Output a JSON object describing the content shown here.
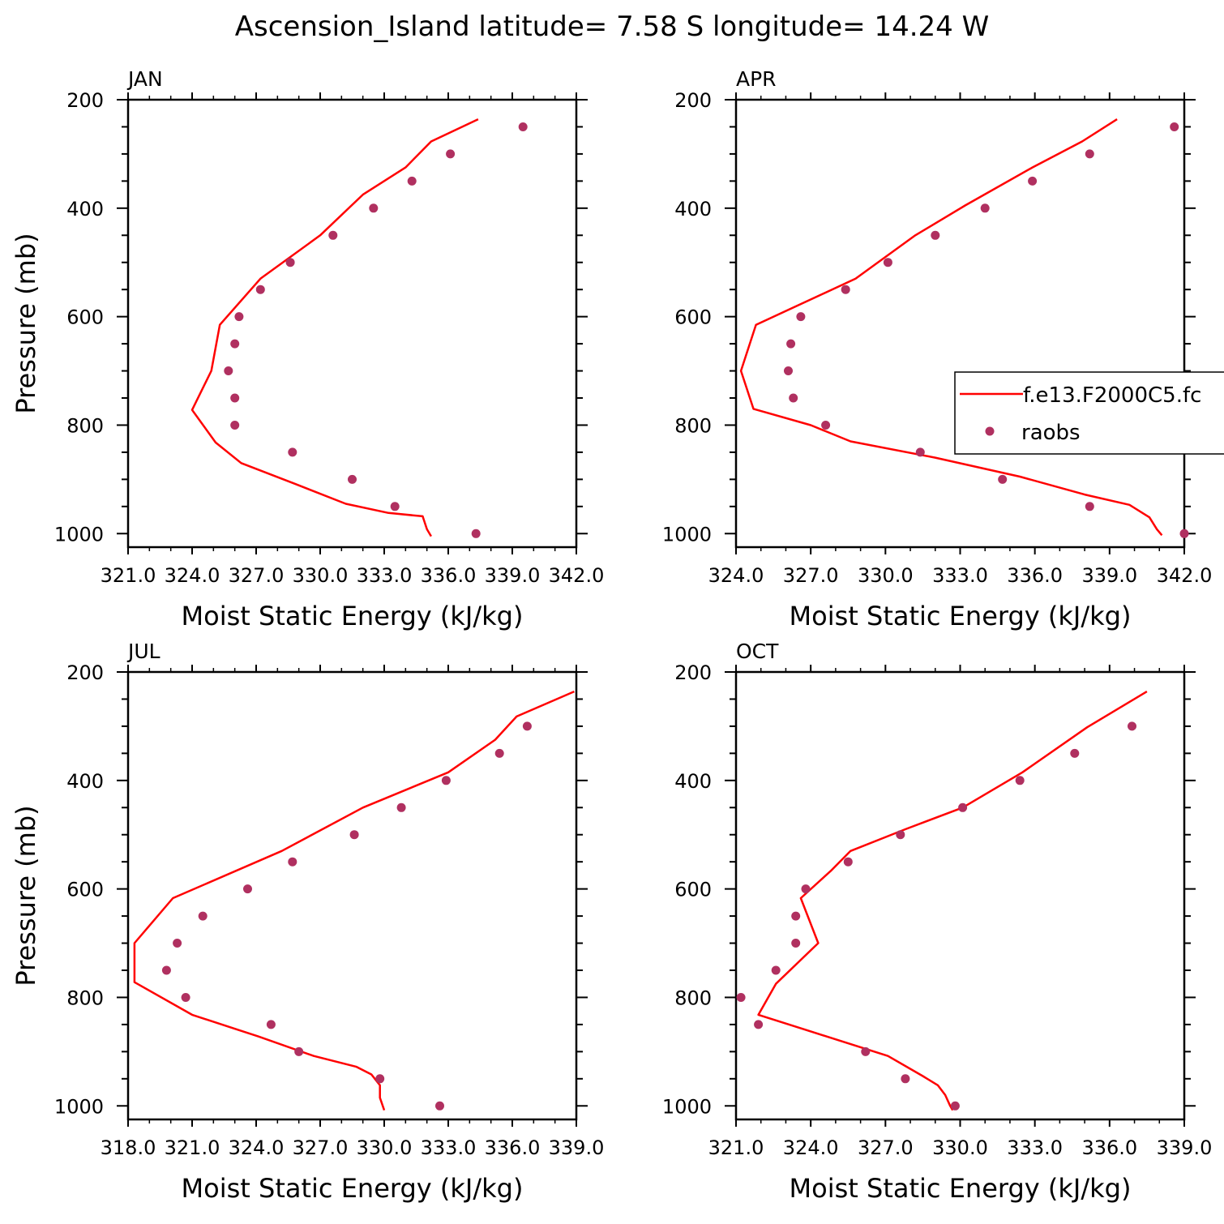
{
  "title": "Ascension_Island  latitude= 7.58 S longitude= 14.24 W",
  "colors": {
    "model_line": "#ff0000",
    "obs_marker": "#b03060",
    "axes": "#000000"
  },
  "legend": {
    "model_label": "f.e13.F2000C5.fc",
    "obs_label": "raobs",
    "position": "right edge of APR panel"
  },
  "chart_data": [
    {
      "type": "line",
      "panel": "JAN",
      "xlabel": "Moist Static Energy (kJ/kg)",
      "ylabel": "Pressure (mb)",
      "xlim": [
        321.0,
        342.0
      ],
      "ylim": [
        1025,
        200
      ],
      "x_ticks": [
        "321.0",
        "324.0",
        "327.0",
        "330.0",
        "333.0",
        "336.0",
        "339.0",
        "342.0"
      ],
      "y_ticks": [
        "200",
        "400",
        "600",
        "800",
        "1000"
      ],
      "series": [
        {
          "name": "f.e13.F2000C5.fc",
          "kind": "line",
          "points": [
            [
              337.4,
              236
            ],
            [
              335.2,
              277
            ],
            [
              334.0,
              325
            ],
            [
              332.0,
              375
            ],
            [
              330.0,
              450
            ],
            [
              327.2,
              530
            ],
            [
              325.3,
              615
            ],
            [
              324.9,
              700
            ],
            [
              324.0,
              772
            ],
            [
              325.1,
              832
            ],
            [
              326.3,
              870
            ],
            [
              328.8,
              908
            ],
            [
              331.2,
              945
            ],
            [
              333.2,
              962
            ],
            [
              334.8,
              968
            ],
            [
              335.0,
              992
            ],
            [
              335.2,
              1005
            ]
          ]
        },
        {
          "name": "raobs",
          "kind": "scatter",
          "points": [
            [
              339.5,
              250
            ],
            [
              336.1,
              300
            ],
            [
              334.3,
              350
            ],
            [
              332.5,
              400
            ],
            [
              330.6,
              450
            ],
            [
              328.6,
              500
            ],
            [
              327.2,
              550
            ],
            [
              326.2,
              600
            ],
            [
              326.0,
              650
            ],
            [
              325.7,
              700
            ],
            [
              326.0,
              750
            ],
            [
              326.0,
              800
            ],
            [
              328.7,
              850
            ],
            [
              331.5,
              900
            ],
            [
              333.5,
              950
            ],
            [
              337.3,
              1000
            ]
          ]
        }
      ]
    },
    {
      "type": "line",
      "panel": "APR",
      "xlabel": "Moist Static Energy (kJ/kg)",
      "ylabel": "",
      "xlim": [
        324.0,
        342.0
      ],
      "ylim": [
        1025,
        200
      ],
      "x_ticks": [
        "324.0",
        "327.0",
        "330.0",
        "333.0",
        "336.0",
        "339.0",
        "342.0"
      ],
      "y_ticks": [
        "200",
        "400",
        "600",
        "800",
        "1000"
      ],
      "series": [
        {
          "name": "f.e13.F2000C5.fc",
          "kind": "line",
          "points": [
            [
              339.3,
              236
            ],
            [
              337.9,
              277
            ],
            [
              335.9,
              325
            ],
            [
              333.2,
              395
            ],
            [
              331.2,
              450
            ],
            [
              328.8,
              530
            ],
            [
              324.8,
              615
            ],
            [
              324.2,
              700
            ],
            [
              324.7,
              770
            ],
            [
              327.0,
              800
            ],
            [
              328.6,
              830
            ],
            [
              332.0,
              860
            ],
            [
              335.4,
              895
            ],
            [
              338.0,
              928
            ],
            [
              339.8,
              947
            ],
            [
              340.6,
              970
            ],
            [
              340.9,
              992
            ],
            [
              341.1,
              1003
            ]
          ]
        },
        {
          "name": "raobs",
          "kind": "scatter",
          "points": [
            [
              341.6,
              250
            ],
            [
              338.2,
              300
            ],
            [
              335.9,
              350
            ],
            [
              334.0,
              400
            ],
            [
              332.0,
              450
            ],
            [
              330.1,
              500
            ],
            [
              328.4,
              550
            ],
            [
              326.6,
              600
            ],
            [
              326.2,
              650
            ],
            [
              326.1,
              700
            ],
            [
              326.3,
              750
            ],
            [
              327.6,
              800
            ],
            [
              331.4,
              850
            ],
            [
              334.7,
              900
            ],
            [
              338.2,
              950
            ],
            [
              342.0,
              1000
            ]
          ]
        }
      ]
    },
    {
      "type": "line",
      "panel": "JUL",
      "xlabel": "Moist Static Energy (kJ/kg)",
      "ylabel": "Pressure (mb)",
      "xlim": [
        318.0,
        339.0
      ],
      "ylim": [
        1025,
        200
      ],
      "x_ticks": [
        "318.0",
        "321.0",
        "324.0",
        "327.0",
        "330.0",
        "333.0",
        "336.0",
        "339.0"
      ],
      "y_ticks": [
        "200",
        "400",
        "600",
        "800",
        "1000"
      ],
      "series": [
        {
          "name": "f.e13.F2000C5.fc",
          "kind": "line",
          "points": [
            [
              338.9,
              236
            ],
            [
              336.2,
              282
            ],
            [
              335.2,
              325
            ],
            [
              333.0,
              385
            ],
            [
              329.0,
              450
            ],
            [
              325.2,
              530
            ],
            [
              320.1,
              617
            ],
            [
              318.3,
              700
            ],
            [
              318.3,
              772
            ],
            [
              321.0,
              832
            ],
            [
              324.1,
              872
            ],
            [
              326.7,
              908
            ],
            [
              328.7,
              928
            ],
            [
              329.4,
              942
            ],
            [
              329.8,
              962
            ],
            [
              329.8,
              985
            ],
            [
              330.0,
              1008
            ]
          ]
        },
        {
          "name": "raobs",
          "kind": "scatter",
          "points": [
            [
              336.7,
              300
            ],
            [
              335.4,
              350
            ],
            [
              332.9,
              400
            ],
            [
              330.8,
              450
            ],
            [
              328.6,
              500
            ],
            [
              325.7,
              550
            ],
            [
              323.6,
              600
            ],
            [
              321.5,
              650
            ],
            [
              320.3,
              700
            ],
            [
              319.8,
              750
            ],
            [
              320.7,
              800
            ],
            [
              324.7,
              850
            ],
            [
              326.0,
              900
            ],
            [
              329.8,
              950
            ],
            [
              332.6,
              1000
            ]
          ]
        }
      ]
    },
    {
      "type": "line",
      "panel": "OCT",
      "xlabel": "Moist Static Energy (kJ/kg)",
      "ylabel": "",
      "xlim": [
        321.0,
        339.0
      ],
      "ylim": [
        1025,
        200
      ],
      "x_ticks": [
        "321.0",
        "324.0",
        "327.0",
        "330.0",
        "333.0",
        "336.0",
        "339.0"
      ],
      "y_ticks": [
        "200",
        "400",
        "600",
        "800",
        "1000"
      ],
      "series": [
        {
          "name": "f.e13.F2000C5.fc",
          "kind": "line",
          "points": [
            [
              337.5,
              236
            ],
            [
              335.1,
              302
            ],
            [
              332.5,
              385
            ],
            [
              330.1,
              450
            ],
            [
              327.8,
              490
            ],
            [
              325.6,
              530
            ],
            [
              324.8,
              567
            ],
            [
              323.6,
              617
            ],
            [
              324.3,
              700
            ],
            [
              322.6,
              775
            ],
            [
              321.9,
              832
            ],
            [
              327.1,
              908
            ],
            [
              328.5,
              945
            ],
            [
              329.1,
              962
            ],
            [
              329.4,
              980
            ],
            [
              329.6,
              1000
            ],
            [
              329.7,
              1008
            ]
          ]
        },
        {
          "name": "raobs",
          "kind": "scatter",
          "points": [
            [
              336.9,
              300
            ],
            [
              334.6,
              350
            ],
            [
              332.4,
              400
            ],
            [
              330.1,
              450
            ],
            [
              327.6,
              500
            ],
            [
              325.5,
              550
            ],
            [
              323.8,
              600
            ],
            [
              323.4,
              650
            ],
            [
              323.4,
              700
            ],
            [
              322.6,
              750
            ],
            [
              321.2,
              800
            ],
            [
              321.9,
              850
            ],
            [
              326.2,
              900
            ],
            [
              327.8,
              950
            ],
            [
              329.8,
              1000
            ]
          ]
        }
      ]
    }
  ]
}
